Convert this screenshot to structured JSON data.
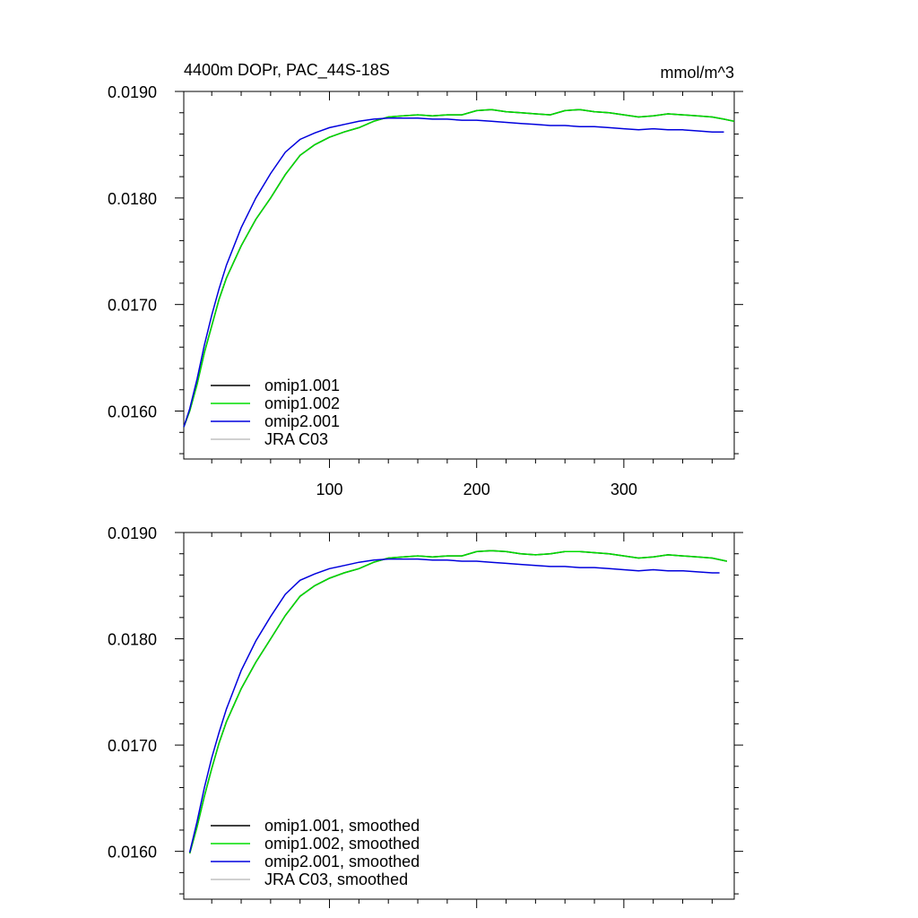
{
  "chart_data": [
    {
      "type": "line",
      "title": "4400m DOPr, PAC_44S-18S",
      "units": "mmol/m^3",
      "xlabel": "",
      "ylabel": "",
      "xlim": [
        1,
        375
      ],
      "ylim": [
        0.01555,
        0.019
      ],
      "yticks": [
        "0.0160",
        "0.0170",
        "0.0180",
        "0.0190"
      ],
      "xticks": [
        "100",
        "200",
        "300"
      ],
      "legend": {
        "placement": "bottom-left"
      },
      "grid": false,
      "series": [
        {
          "name": "omip1.001",
          "color": "#000000",
          "x": [
            1,
            5,
            10,
            15,
            20,
            25,
            30,
            40,
            50,
            60,
            70,
            80,
            90,
            100,
            110,
            120,
            130,
            140,
            150,
            160,
            170,
            180,
            190,
            200,
            210,
            220,
            230,
            240,
            250,
            260,
            270,
            280,
            290,
            300,
            310,
            320,
            330,
            340,
            350,
            360,
            368,
            375
          ],
          "y": [
            0.01585,
            0.016,
            0.01625,
            0.01655,
            0.0168,
            0.01705,
            0.01725,
            0.01755,
            0.0178,
            0.018,
            0.01822,
            0.0184,
            0.0185,
            0.01857,
            0.01862,
            0.01866,
            0.01872,
            0.01876,
            0.01877,
            0.01878,
            0.01877,
            0.01878,
            0.01878,
            0.01882,
            0.01883,
            0.01881,
            0.0188,
            0.01879,
            0.01878,
            0.01882,
            0.01883,
            0.01881,
            0.0188,
            0.01878,
            0.01876,
            0.01877,
            0.01879,
            0.01878,
            0.01877,
            0.01876,
            0.01874,
            0.01872
          ]
        },
        {
          "name": "omip1.002",
          "color": "#00dd00",
          "x": [
            1,
            5,
            10,
            15,
            20,
            25,
            30,
            40,
            50,
            60,
            70,
            80,
            90,
            100,
            110,
            120,
            130,
            140,
            150,
            160,
            170,
            180,
            190,
            200,
            210,
            220,
            230,
            240,
            250,
            260,
            270,
            280,
            290,
            300,
            310,
            320,
            330,
            340,
            350,
            360,
            368,
            375
          ],
          "y": [
            0.01585,
            0.016,
            0.01625,
            0.01655,
            0.0168,
            0.01705,
            0.01725,
            0.01755,
            0.0178,
            0.018,
            0.01822,
            0.0184,
            0.0185,
            0.01857,
            0.01862,
            0.01866,
            0.01872,
            0.01876,
            0.01877,
            0.01878,
            0.01877,
            0.01878,
            0.01878,
            0.01882,
            0.01883,
            0.01881,
            0.0188,
            0.01879,
            0.01878,
            0.01882,
            0.01883,
            0.01881,
            0.0188,
            0.01878,
            0.01876,
            0.01877,
            0.01879,
            0.01878,
            0.01877,
            0.01876,
            0.01874,
            0.01872
          ]
        },
        {
          "name": "omip2.001",
          "color": "#0000dd",
          "x": [
            1,
            5,
            10,
            15,
            20,
            25,
            30,
            40,
            50,
            60,
            70,
            80,
            90,
            100,
            110,
            120,
            130,
            140,
            150,
            160,
            170,
            180,
            190,
            200,
            210,
            220,
            230,
            240,
            250,
            260,
            270,
            280,
            290,
            300,
            310,
            320,
            330,
            340,
            350,
            360,
            368
          ],
          "y": [
            0.01585,
            0.01602,
            0.0163,
            0.01662,
            0.0169,
            0.01715,
            0.01737,
            0.01772,
            0.018,
            0.01823,
            0.01843,
            0.01855,
            0.01861,
            0.01866,
            0.01869,
            0.01872,
            0.01874,
            0.01875,
            0.01875,
            0.01875,
            0.01874,
            0.01874,
            0.01873,
            0.01873,
            0.01872,
            0.01871,
            0.0187,
            0.01869,
            0.01868,
            0.01868,
            0.01867,
            0.01867,
            0.01866,
            0.01865,
            0.01864,
            0.01865,
            0.01864,
            0.01864,
            0.01863,
            0.01862,
            0.01862
          ]
        },
        {
          "name": "JRA C03",
          "color": "#c0c0c0",
          "x": [],
          "y": []
        }
      ]
    },
    {
      "type": "line",
      "title": "",
      "xlabel": "",
      "ylabel": "",
      "xlim": [
        1,
        375
      ],
      "ylim": [
        0.01555,
        0.019
      ],
      "yticks": [
        "0.0160",
        "0.0170",
        "0.0180",
        "0.0190"
      ],
      "xticks": [],
      "legend": {
        "placement": "bottom-left"
      },
      "grid": false,
      "series": [
        {
          "name": "omip1.001, smoothed",
          "color": "#000000",
          "x": [
            5,
            10,
            15,
            20,
            25,
            30,
            40,
            50,
            60,
            70,
            80,
            90,
            100,
            110,
            120,
            130,
            140,
            150,
            160,
            170,
            180,
            190,
            200,
            210,
            220,
            230,
            240,
            250,
            260,
            270,
            280,
            290,
            300,
            310,
            320,
            330,
            340,
            350,
            360,
            370
          ],
          "y": [
            0.01598,
            0.01623,
            0.01652,
            0.01678,
            0.01702,
            0.01722,
            0.01753,
            0.01778,
            0.018,
            0.01822,
            0.0184,
            0.0185,
            0.01857,
            0.01862,
            0.01866,
            0.01872,
            0.01876,
            0.01877,
            0.01878,
            0.01877,
            0.01878,
            0.01878,
            0.01882,
            0.01883,
            0.01882,
            0.0188,
            0.01879,
            0.0188,
            0.01882,
            0.01882,
            0.01881,
            0.0188,
            0.01878,
            0.01876,
            0.01877,
            0.01879,
            0.01878,
            0.01877,
            0.01876,
            0.01873
          ]
        },
        {
          "name": "omip1.002, smoothed",
          "color": "#00dd00",
          "x": [
            5,
            10,
            15,
            20,
            25,
            30,
            40,
            50,
            60,
            70,
            80,
            90,
            100,
            110,
            120,
            130,
            140,
            150,
            160,
            170,
            180,
            190,
            200,
            210,
            220,
            230,
            240,
            250,
            260,
            270,
            280,
            290,
            300,
            310,
            320,
            330,
            340,
            350,
            360,
            370
          ],
          "y": [
            0.01598,
            0.01623,
            0.01652,
            0.01678,
            0.01702,
            0.01722,
            0.01753,
            0.01778,
            0.018,
            0.01822,
            0.0184,
            0.0185,
            0.01857,
            0.01862,
            0.01866,
            0.01872,
            0.01876,
            0.01877,
            0.01878,
            0.01877,
            0.01878,
            0.01878,
            0.01882,
            0.01883,
            0.01882,
            0.0188,
            0.01879,
            0.0188,
            0.01882,
            0.01882,
            0.01881,
            0.0188,
            0.01878,
            0.01876,
            0.01877,
            0.01879,
            0.01878,
            0.01877,
            0.01876,
            0.01873
          ]
        },
        {
          "name": "omip2.001, smoothed",
          "color": "#0000dd",
          "x": [
            5,
            10,
            15,
            20,
            25,
            30,
            40,
            50,
            60,
            70,
            80,
            90,
            100,
            110,
            120,
            130,
            140,
            150,
            160,
            170,
            180,
            190,
            200,
            210,
            220,
            230,
            240,
            250,
            260,
            270,
            280,
            290,
            300,
            310,
            320,
            330,
            340,
            350,
            360,
            365
          ],
          "y": [
            0.01599,
            0.01628,
            0.0166,
            0.01688,
            0.01712,
            0.01734,
            0.0177,
            0.01798,
            0.01821,
            0.01842,
            0.01855,
            0.01861,
            0.01866,
            0.01869,
            0.01872,
            0.01874,
            0.01875,
            0.01875,
            0.01875,
            0.01874,
            0.01874,
            0.01873,
            0.01873,
            0.01872,
            0.01871,
            0.0187,
            0.01869,
            0.01868,
            0.01868,
            0.01867,
            0.01867,
            0.01866,
            0.01865,
            0.01864,
            0.01865,
            0.01864,
            0.01864,
            0.01863,
            0.01862,
            0.01862
          ]
        },
        {
          "name": "JRA C03, smoothed",
          "color": "#c0c0c0",
          "x": [],
          "y": []
        }
      ]
    }
  ]
}
